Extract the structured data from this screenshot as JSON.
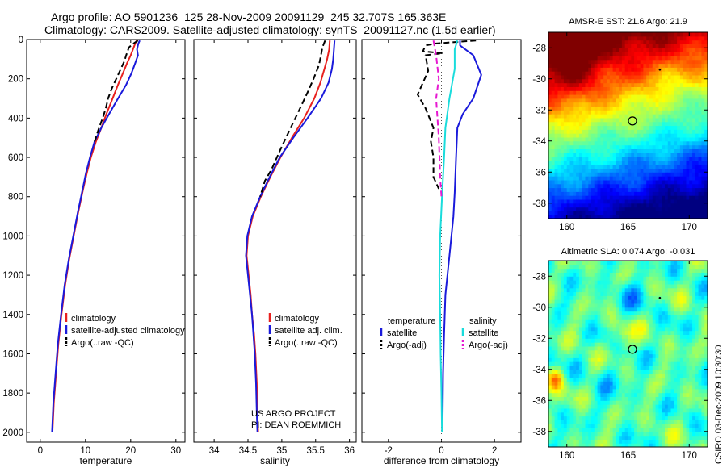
{
  "header": {
    "line1": "Argo profile: AO 5901236_125 28-Nov-2009 20091129_245 32.707S 165.363E",
    "line2": "Climatology: CARS2009. Satellite-adjusted climatology: synTS_20091127.nc (1.5d earlier)"
  },
  "credits": {
    "line1": "US ARGO PROJECT",
    "line2": "PI: DEAN ROEMMICH"
  },
  "side_stamp": "CSIRO 03-Dec-2009 10:30:30",
  "colors": {
    "climatology": "#e8211f",
    "satellite": "#1a1adb",
    "argo": "#000000",
    "salinity_sat": "#19dcdc",
    "salinity_argo": "#e619d1"
  },
  "chart_data": [
    {
      "type": "line",
      "id": "temperature",
      "xlabel": "temperature",
      "ylabel": "",
      "xlim": [
        -3,
        32
      ],
      "ylim": [
        2050,
        0
      ],
      "yreversed": true,
      "xticks": [
        0,
        10,
        20,
        30
      ],
      "yticks": [
        0,
        200,
        400,
        600,
        800,
        1000,
        1200,
        1400,
        1600,
        1800,
        2000
      ],
      "grid": false,
      "legend_position": "lower-right",
      "legend": [
        "climatology",
        "satellite-adjusted climatology",
        "Argo(..raw -QC)"
      ],
      "series": [
        {
          "name": "climatology",
          "color": "#e8211f",
          "dash": "",
          "points": [
            [
              21.3,
              5
            ],
            [
              21.0,
              20
            ],
            [
              20.5,
              50
            ],
            [
              20.0,
              80
            ],
            [
              19.2,
              120
            ],
            [
              18.3,
              170
            ],
            [
              17.2,
              230
            ],
            [
              16.0,
              300
            ],
            [
              14.6,
              380
            ],
            [
              13.5,
              450
            ],
            [
              12.3,
              520
            ],
            [
              11.2,
              600
            ],
            [
              10.3,
              680
            ],
            [
              9.5,
              760
            ],
            [
              8.4,
              880
            ],
            [
              7.4,
              1000
            ],
            [
              6.4,
              1120
            ],
            [
              5.5,
              1250
            ],
            [
              4.7,
              1400
            ],
            [
              4.0,
              1550
            ],
            [
              3.5,
              1700
            ],
            [
              3.0,
              1850
            ],
            [
              2.7,
              2000
            ]
          ]
        },
        {
          "name": "satellite-adjusted climatology",
          "color": "#1a1adb",
          "dash": "",
          "points": [
            [
              22.0,
              5
            ],
            [
              21.7,
              20
            ],
            [
              21.4,
              50
            ],
            [
              21.6,
              80
            ],
            [
              21.0,
              120
            ],
            [
              20.2,
              170
            ],
            [
              19.0,
              230
            ],
            [
              17.2,
              300
            ],
            [
              15.2,
              380
            ],
            [
              13.5,
              450
            ],
            [
              12.0,
              520
            ],
            [
              11.0,
              600
            ],
            [
              10.1,
              680
            ],
            [
              9.4,
              760
            ],
            [
              8.3,
              880
            ],
            [
              7.3,
              1000
            ],
            [
              6.3,
              1120
            ],
            [
              5.4,
              1250
            ],
            [
              4.6,
              1400
            ],
            [
              3.9,
              1550
            ],
            [
              3.4,
              1700
            ],
            [
              2.9,
              1850
            ],
            [
              2.6,
              2000
            ]
          ]
        },
        {
          "name": "Argo(..raw -QC)",
          "color": "#000000",
          "dash": "7,4",
          "points": [
            [
              21.6,
              5
            ],
            [
              20.6,
              20
            ],
            [
              19.6,
              40
            ],
            [
              19.0,
              80
            ],
            [
              18.6,
              110
            ],
            [
              17.8,
              150
            ],
            [
              16.8,
              200
            ],
            [
              15.8,
              250
            ],
            [
              15.0,
              300
            ],
            [
              14.5,
              350
            ],
            [
              13.8,
              400
            ],
            [
              13.0,
              450
            ],
            [
              12.0,
              520
            ]
          ]
        }
      ]
    },
    {
      "type": "line",
      "id": "salinity",
      "xlabel": "salinity",
      "ylabel": "",
      "xlim": [
        33.7,
        36.1
      ],
      "ylim": [
        2050,
        0
      ],
      "yreversed": true,
      "xticks": [
        34,
        34.5,
        35,
        35.5,
        36
      ],
      "grid": false,
      "legend_position": "lower-right",
      "legend": [
        "climatology",
        "satellite adj. clim.",
        "Argo(..raw -QC)"
      ],
      "series": [
        {
          "name": "climatology",
          "color": "#e8211f",
          "dash": "",
          "points": [
            [
              35.71,
              5
            ],
            [
              35.7,
              50
            ],
            [
              35.67,
              100
            ],
            [
              35.63,
              150
            ],
            [
              35.57,
              220
            ],
            [
              35.48,
              300
            ],
            [
              35.33,
              400
            ],
            [
              35.15,
              500
            ],
            [
              34.98,
              600
            ],
            [
              34.83,
              700
            ],
            [
              34.69,
              800
            ],
            [
              34.57,
              900
            ],
            [
              34.5,
              1000
            ],
            [
              34.48,
              1100
            ],
            [
              34.51,
              1200
            ],
            [
              34.54,
              1300
            ],
            [
              34.56,
              1400
            ],
            [
              34.59,
              1500
            ],
            [
              34.61,
              1600
            ],
            [
              34.63,
              1750
            ],
            [
              34.64,
              1900
            ],
            [
              34.65,
              2000
            ]
          ]
        },
        {
          "name": "satellite adj. clim.",
          "color": "#1a1adb",
          "dash": "",
          "points": [
            [
              35.78,
              5
            ],
            [
              35.77,
              50
            ],
            [
              35.76,
              100
            ],
            [
              35.74,
              150
            ],
            [
              35.69,
              220
            ],
            [
              35.58,
              300
            ],
            [
              35.38,
              400
            ],
            [
              35.17,
              500
            ],
            [
              34.97,
              600
            ],
            [
              34.82,
              700
            ],
            [
              34.68,
              800
            ],
            [
              34.56,
              900
            ],
            [
              34.49,
              1000
            ],
            [
              34.47,
              1100
            ],
            [
              34.5,
              1200
            ],
            [
              34.53,
              1300
            ],
            [
              34.56,
              1400
            ],
            [
              34.58,
              1500
            ],
            [
              34.6,
              1600
            ],
            [
              34.62,
              1750
            ],
            [
              34.63,
              1900
            ],
            [
              34.64,
              2000
            ]
          ]
        },
        {
          "name": "Argo(..raw -QC)",
          "color": "#000000",
          "dash": "7,4",
          "points": [
            [
              35.64,
              5
            ],
            [
              35.6,
              40
            ],
            [
              35.58,
              80
            ],
            [
              35.55,
              130
            ],
            [
              35.47,
              200
            ],
            [
              35.38,
              270
            ],
            [
              35.27,
              350
            ],
            [
              35.13,
              450
            ],
            [
              34.98,
              560
            ],
            [
              34.85,
              660
            ],
            [
              34.75,
              720
            ],
            [
              34.68,
              800
            ]
          ]
        }
      ]
    },
    {
      "type": "line",
      "id": "difference",
      "xlabel": "difference from climatology",
      "ylabel": "",
      "xlim": [
        -3,
        3
      ],
      "ylim": [
        2050,
        0
      ],
      "yreversed": true,
      "xticks": [
        -2,
        0,
        2
      ],
      "grid": false,
      "legend_position": "lower-center",
      "legend_headers": [
        "temperature",
        "salinity"
      ],
      "legend": [
        "satellite",
        "Argo(-adj)",
        "satellite",
        "Argo(-adj)"
      ],
      "series": [
        {
          "name": "satellite",
          "group": "temperature",
          "color": "#1a1adb",
          "dash": "",
          "points": [
            [
              0.7,
              5
            ],
            [
              0.7,
              30
            ],
            [
              1.2,
              80
            ],
            [
              1.5,
              180
            ],
            [
              1.2,
              300
            ],
            [
              0.8,
              380
            ],
            [
              0.6,
              450
            ],
            [
              0.55,
              600
            ],
            [
              0.5,
              780
            ],
            [
              0.45,
              900
            ],
            [
              0.3,
              1100
            ],
            [
              0.15,
              1300
            ],
            [
              0.1,
              1500
            ],
            [
              0.06,
              1700
            ],
            [
              0.04,
              2000
            ]
          ]
        },
        {
          "name": "Argo(-adj)",
          "group": "temperature",
          "color": "#000000",
          "dash": "7,4",
          "points": [
            [
              1.3,
              5
            ],
            [
              -0.2,
              20
            ],
            [
              -0.6,
              30
            ],
            [
              -0.7,
              60
            ],
            [
              0.05,
              70
            ],
            [
              -0.6,
              80
            ],
            [
              -0.5,
              160
            ],
            [
              -0.9,
              280
            ],
            [
              -0.6,
              350
            ],
            [
              -0.3,
              450
            ],
            [
              -0.4,
              520
            ],
            [
              -0.3,
              600
            ],
            [
              -0.3,
              700
            ],
            [
              -0.1,
              760
            ]
          ]
        },
        {
          "name": "satellite",
          "group": "salinity",
          "color": "#19dcdc",
          "dash": "",
          "points": [
            [
              0.6,
              5
            ],
            [
              0.5,
              50
            ],
            [
              0.5,
              150
            ],
            [
              0.3,
              300
            ],
            [
              0.15,
              450
            ],
            [
              0.1,
              600
            ],
            [
              0.02,
              800
            ],
            [
              -0.05,
              1000
            ],
            [
              -0.08,
              1200
            ],
            [
              -0.05,
              1400
            ],
            [
              -0.03,
              1600
            ],
            [
              0.0,
              1800
            ],
            [
              0.02,
              2000
            ]
          ]
        },
        {
          "name": "Argo(-adj)",
          "group": "salinity",
          "color": "#e619d1",
          "dash": "7,4",
          "points": [
            [
              -0.3,
              5
            ],
            [
              -0.2,
              80
            ],
            [
              -0.1,
              200
            ],
            [
              -0.2,
              300
            ],
            [
              -0.1,
              500
            ],
            [
              -0.05,
              700
            ],
            [
              0.0,
              800
            ]
          ]
        }
      ]
    },
    {
      "type": "heatmap",
      "id": "sst-map",
      "title": "AMSR-E SST: 21.6 Argo: 21.9",
      "xlim": [
        158.5,
        171.5
      ],
      "ylim": [
        -39,
        -27
      ],
      "xticks": [
        160,
        165,
        170
      ],
      "yticks": [
        -28,
        -30,
        -32,
        -34,
        -36,
        -38
      ],
      "profile_marker": [
        165.363,
        -32.707
      ],
      "minor_marker": [
        167.6,
        -29.4
      ]
    },
    {
      "type": "heatmap",
      "id": "sla-map",
      "title": "Altimetric SLA: 0.074 Argo: -0.031",
      "xlim": [
        158.5,
        171.5
      ],
      "ylim": [
        -39,
        -27
      ],
      "xticks": [
        160,
        165,
        170
      ],
      "yticks": [
        -28,
        -30,
        -32,
        -34,
        -36,
        -38
      ],
      "profile_marker": [
        165.363,
        -32.707
      ],
      "minor_marker": [
        167.6,
        -29.4
      ]
    }
  ]
}
